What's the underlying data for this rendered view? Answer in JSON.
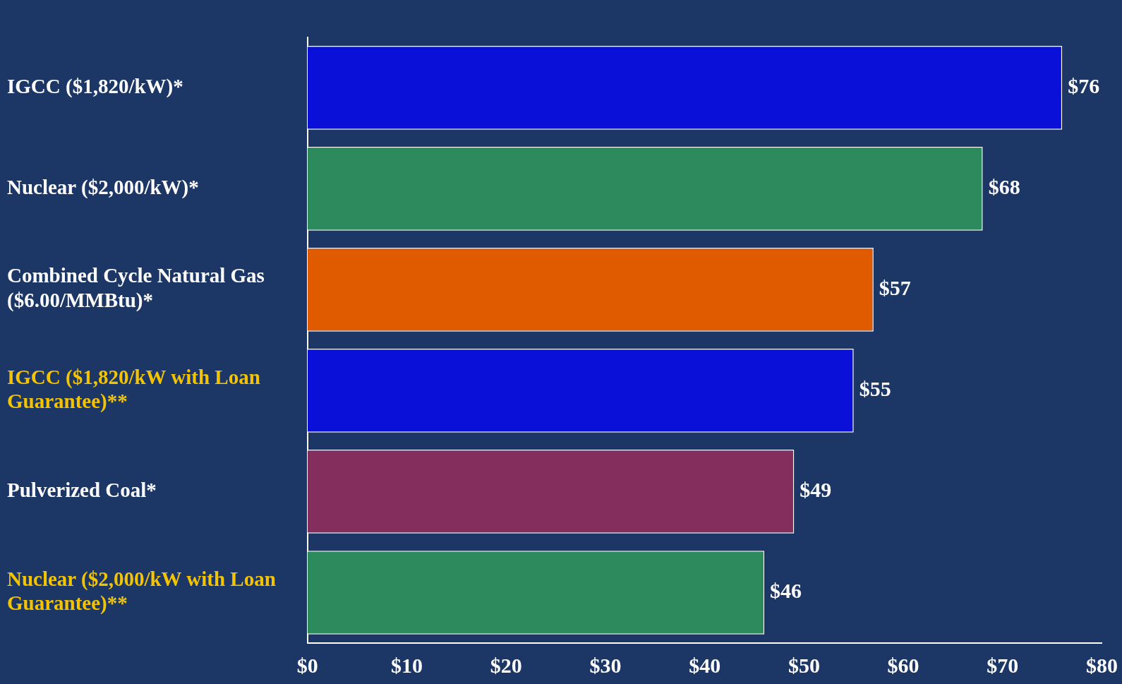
{
  "chart_data": {
    "type": "bar",
    "orientation": "horizontal",
    "categories": [
      "IGCC ($1,820/kW)*",
      "Nuclear ($2,000/kW)*",
      "Combined Cycle Natural Gas ($6.00/MMBtu)*",
      "IGCC ($1,820/kW with Loan Guarantee)**",
      "Pulverized Coal*",
      "Nuclear ($2,000/kW with Loan Guarantee)**"
    ],
    "values": [
      76,
      68,
      57,
      55,
      49,
      46
    ],
    "colors": [
      "#0a10d8",
      "#2c8a5c",
      "#e05a00",
      "#0a10d8",
      "#842e5e",
      "#2c8a5c"
    ],
    "value_labels": [
      "$76",
      "$68",
      "$57",
      "$55",
      "$49",
      "$46"
    ],
    "xlim": [
      0,
      80
    ],
    "xticks": [
      {
        "value": 0,
        "label": "$0"
      },
      {
        "value": 10,
        "label": "$10"
      },
      {
        "value": 20,
        "label": "$20"
      },
      {
        "value": 30,
        "label": "$30"
      },
      {
        "value": 40,
        "label": "$40"
      },
      {
        "value": 50,
        "label": "$50"
      },
      {
        "value": 60,
        "label": "$60"
      },
      {
        "value": 70,
        "label": "$70"
      },
      {
        "value": 80,
        "label": "$80"
      }
    ],
    "grid": false,
    "legend": false
  }
}
